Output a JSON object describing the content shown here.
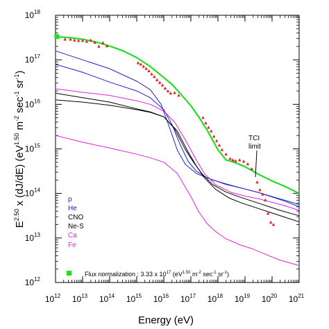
{
  "chart_data": {
    "type": "line",
    "xlabel": "Energy (eV)",
    "ylabel": {
      "prefix": "E",
      "prefix_exp": "2.50",
      "main": " x (dJ/dE)  (eV",
      "exp1": "1.50",
      "m": " m",
      "exp2": "-2",
      "sec": " sec",
      "exp3": "-1",
      "sr": " sr",
      "exp4": "-1",
      "close": ")"
    },
    "x_log_range": [
      12,
      21
    ],
    "y_log_range": [
      12,
      18
    ],
    "x_ticks": [
      "10^12",
      "10^13",
      "10^14",
      "10^15",
      "10^16",
      "10^17",
      "10^18",
      "10^19",
      "10^20",
      "10^21"
    ],
    "y_ticks": [
      "10^12",
      "10^13",
      "10^14",
      "10^15",
      "10^16",
      "10^17",
      "10^18"
    ],
    "legend": [
      {
        "label": "p",
        "color": "#2020d0"
      },
      {
        "label": "He",
        "color": "#2020d0"
      },
      {
        "label": "CNO",
        "color": "#000000"
      },
      {
        "label": "Ne-S",
        "color": "#000000"
      },
      {
        "label": "Ca",
        "color": "#e020e0"
      },
      {
        "label": "Fe",
        "color": "#e020e0"
      }
    ],
    "annotation": {
      "line1": "TCI",
      "line2": "limit"
    },
    "footnote": {
      "text": "Flux normalization : 3.33 x 10",
      "exp": "17",
      "units": " (eV",
      "u_exp1": "1.50",
      "m": " m",
      "u_exp2": "-2",
      "sec": " sec",
      "u_exp3": "-1",
      "sr": " sr",
      "u_exp4": "-1",
      "close": ")"
    },
    "series": [
      {
        "name": "total",
        "color": "#22dd22",
        "width": 2.2,
        "x": [
          12,
          12.5,
          13,
          13.5,
          14,
          14.5,
          15,
          15.5,
          15.8,
          16,
          16.3,
          16.6,
          17,
          17.3,
          17.6,
          18,
          18.3,
          18.6,
          19,
          19.5,
          20,
          20.5,
          21
        ],
        "y": [
          17.52,
          17.5,
          17.46,
          17.4,
          17.31,
          17.2,
          17.05,
          16.85,
          16.7,
          16.6,
          16.45,
          16.25,
          15.97,
          15.71,
          15.42,
          14.98,
          14.75,
          14.7,
          14.6,
          14.43,
          14.28,
          14.15,
          14.0
        ]
      },
      {
        "name": "p",
        "color": "#2020d0",
        "width": 1,
        "x": [
          12,
          13,
          14,
          15,
          15.5,
          15.9,
          16.2,
          16.5,
          16.8,
          17.2,
          17.8,
          18.5,
          19,
          19.5,
          20,
          20.5,
          21
        ],
        "y": [
          17.2,
          17.0,
          16.8,
          16.52,
          16.33,
          16.0,
          15.5,
          14.97,
          14.65,
          14.45,
          14.3,
          14.18,
          14.1,
          14.02,
          13.93,
          13.84,
          13.75
        ]
      },
      {
        "name": "He",
        "color": "#2020d0",
        "width": 1,
        "x": [
          12,
          13,
          14,
          15,
          15.5,
          16,
          16.3,
          16.6,
          16.9,
          17.2,
          17.6,
          18.3,
          19,
          19.5,
          20,
          20.5,
          21
        ],
        "y": [
          16.9,
          16.72,
          16.5,
          16.3,
          16.15,
          15.88,
          15.55,
          15.1,
          14.72,
          14.5,
          14.35,
          14.2,
          14.1,
          14.02,
          13.92,
          13.82,
          13.7
        ]
      },
      {
        "name": "CNO",
        "color": "#000000",
        "width": 1,
        "x": [
          12,
          13,
          14,
          15,
          15.5,
          16,
          16.4,
          16.8,
          17.1,
          17.4,
          17.8,
          18.3,
          18.8,
          19.3,
          19.8,
          20.3,
          21
        ],
        "y": [
          16.25,
          16.15,
          16.05,
          15.9,
          15.83,
          15.72,
          15.45,
          14.98,
          14.7,
          14.45,
          14.2,
          14.03,
          13.92,
          13.82,
          13.72,
          13.62,
          13.5
        ]
      },
      {
        "name": "Ne-S",
        "color": "#000000",
        "width": 1,
        "x": [
          12,
          13,
          14,
          15,
          15.5,
          16,
          16.5,
          16.9,
          17.2,
          17.5,
          17.9,
          18.4,
          18.9,
          19.4,
          19.9,
          20.4,
          21
        ],
        "y": [
          16.1,
          16.05,
          15.98,
          15.88,
          15.82,
          15.72,
          15.4,
          14.93,
          14.62,
          14.35,
          14.1,
          13.9,
          13.78,
          13.68,
          13.58,
          13.48,
          13.36
        ]
      },
      {
        "name": "Ca",
        "color": "#e020e0",
        "width": 1,
        "x": [
          12,
          13,
          14,
          15,
          15.5,
          16,
          16.4,
          16.8,
          17.2,
          17.5,
          17.9,
          18.5,
          19,
          19.5,
          20,
          20.5,
          21
        ],
        "y": [
          16.35,
          16.27,
          16.2,
          16.08,
          16.0,
          15.85,
          15.6,
          15.2,
          14.75,
          14.45,
          14.2,
          14.02,
          13.94,
          13.88,
          13.8,
          13.72,
          13.62
        ]
      },
      {
        "name": "Fe",
        "color": "#e020e0",
        "width": 1,
        "x": [
          12,
          13,
          14,
          15,
          15.5,
          16,
          16.5,
          17,
          17.3,
          17.6,
          17.9,
          18.3,
          18.8,
          19.3,
          19.8,
          20.3,
          21
        ],
        "y": [
          15.3,
          15.15,
          15.02,
          14.88,
          14.8,
          14.7,
          14.45,
          13.93,
          13.58,
          13.32,
          13.15,
          12.98,
          12.85,
          12.75,
          12.62,
          12.5,
          12.38
        ]
      }
    ],
    "normalization_point": {
      "x": 12.05,
      "y": 17.52,
      "color": "#22dd22"
    },
    "data_points": {
      "color": "#e02020",
      "x": [
        12.35,
        12.55,
        12.7,
        12.85,
        13.0,
        13.15,
        13.3,
        13.45,
        13.6,
        13.75,
        13.9,
        15.05,
        15.15,
        15.25,
        15.35,
        15.45,
        15.55,
        15.65,
        15.75,
        15.85,
        15.95,
        16.05,
        16.15,
        16.25,
        16.4,
        16.55,
        17.45,
        17.55,
        17.65,
        17.75,
        17.85,
        17.95,
        18.05,
        18.15,
        18.3,
        18.45,
        18.55,
        18.65,
        18.8,
        18.95,
        19.1,
        19.25,
        19.45,
        19.55,
        19.65,
        19.75,
        19.85,
        19.95,
        20.05
      ],
      "y": [
        17.46,
        17.46,
        17.44,
        17.43,
        17.43,
        17.41,
        17.44,
        17.39,
        17.3,
        17.38,
        17.31,
        16.93,
        16.9,
        16.85,
        16.8,
        16.75,
        16.68,
        16.62,
        16.55,
        16.49,
        16.43,
        16.36,
        16.3,
        16.25,
        16.26,
        16.2,
        15.7,
        15.58,
        15.48,
        15.4,
        15.28,
        15.18,
        15.08,
        14.98,
        14.88,
        14.78,
        14.75,
        14.73,
        14.75,
        14.72,
        14.66,
        14.55,
        14.25,
        14.08,
        13.98,
        13.85,
        13.55,
        13.35,
        13.3
      ]
    }
  }
}
